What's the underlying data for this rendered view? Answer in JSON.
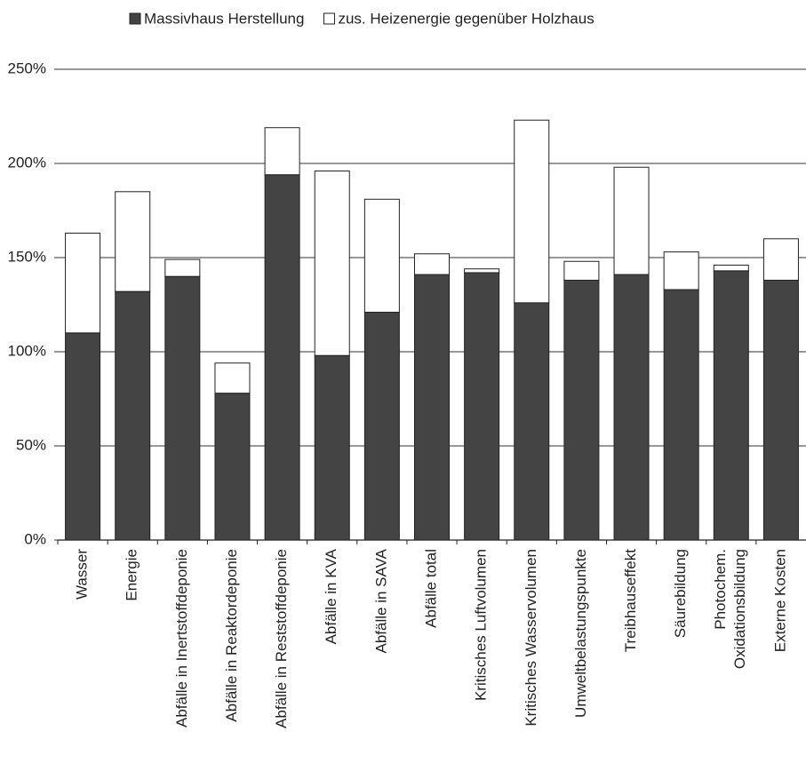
{
  "chart_data": {
    "type": "stacked_bar",
    "categories": [
      "Wasser",
      "Energie",
      "Abfälle in Inertstoffdeponie",
      "Abfälle in Reaktordeponie",
      "Abfälle in Reststoffdeponie",
      "Abfälle in KVA",
      "Abfälle in SAVA",
      "Abfälle total",
      "Kritisches Luftvolumen",
      "Kritisches Wasservolumen",
      "Umweltbelastungspunkte",
      "Treibhauseffekt",
      "Säurebildung",
      "Photochem.\nOxidationsbildung",
      "Externe Kosten"
    ],
    "series": [
      {
        "name": "Massivhaus Herstellung",
        "color": "#444444",
        "values": [
          110,
          132,
          140,
          78,
          194,
          98,
          121,
          141,
          142,
          126,
          138,
          141,
          133,
          143,
          138
        ]
      },
      {
        "name": "zus. Heizenergie gegenüber Holzhaus",
        "color": "#ffffff",
        "values": [
          53,
          53,
          9,
          16,
          25,
          98,
          60,
          11,
          2,
          97,
          10,
          57,
          20,
          3,
          22
        ]
      }
    ],
    "ylim": [
      0,
      250
    ],
    "yticks": [
      {
        "value": 0,
        "label": "0%"
      },
      {
        "value": 50,
        "label": "50%"
      },
      {
        "value": 100,
        "label": "100%"
      },
      {
        "value": 150,
        "label": "150%"
      },
      {
        "value": 200,
        "label": "200%"
      },
      {
        "value": 250,
        "label": "250%"
      }
    ],
    "grid": true,
    "legend": "top"
  }
}
